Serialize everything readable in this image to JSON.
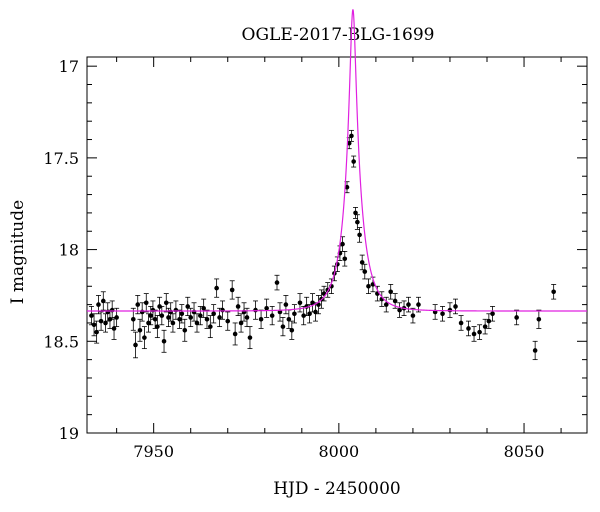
{
  "chart_data": {
    "type": "scatter",
    "title": "OGLE-2017-BLG-1699",
    "xlabel": "HJD - 2450000",
    "ylabel": "I magnitude",
    "xlim": [
      7932,
      8067
    ],
    "ylim": [
      19,
      16.95
    ],
    "y_inverted": true,
    "x_ticks": [
      7950,
      8000,
      8050
    ],
    "y_ticks": [
      17,
      17.5,
      18,
      18.5,
      19
    ],
    "x_tick_labels": [
      "7950",
      "8000",
      "8050"
    ],
    "y_tick_labels": [
      "17",
      "17.5",
      "18",
      "18.5",
      "19"
    ],
    "grid": false,
    "legend": "none",
    "colors": {
      "data": "#000000",
      "model": "#e020e0"
    },
    "model": {
      "name": "",
      "t0": 8003.8,
      "tE": 5.0,
      "u0": 0.15,
      "baseline_mag": 18.335,
      "blend_fraction": 0.62
    },
    "series": [
      {
        "name": "",
        "x": [
          7933.2,
          7933.9,
          7934.6,
          7935.1,
          7935.8,
          7936.4,
          7937.0,
          7937.6,
          7938.2,
          7938.8,
          7939.3,
          7940.0,
          7944.5,
          7945.1,
          7945.7,
          7946.3,
          7946.9,
          7947.5,
          7948.0,
          7948.6,
          7949.2,
          7949.8,
          7950.4,
          7951.0,
          7951.6,
          7952.2,
          7952.8,
          7953.4,
          7954.0,
          7954.6,
          7955.2,
          7956.0,
          7957.0,
          7957.6,
          7958.4,
          7959.2,
          7960.0,
          7960.9,
          7961.7,
          7962.6,
          7963.5,
          7964.4,
          7965.3,
          7966.2,
          7967.0,
          7967.8,
          7968.6,
          7970.0,
          7971.2,
          7972.0,
          7972.8,
          7973.6,
          7974.4,
          7975.2,
          7976.0,
          7977.5,
          7979.0,
          7980.5,
          7982.0,
          7983.3,
          7984.1,
          7984.9,
          7985.7,
          7986.5,
          7987.3,
          7988.0,
          7989.5,
          7990.5,
          7991.3,
          7992.1,
          7992.9,
          7993.7,
          7994.5,
          7995.3,
          7996.0,
          7997.0,
          7998.0,
          7998.8,
          7999.6,
          8000.3,
          8001.0,
          8001.6,
          8002.2,
          8002.8,
          8003.4,
          8004.0,
          8004.5,
          8005.0,
          8005.6,
          8006.3,
          8007.0,
          8008.0,
          8009.2,
          8010.4,
          8011.6,
          8012.8,
          8014.0,
          8015.2,
          8016.4,
          8017.6,
          8018.8,
          8020.0,
          8021.5,
          8026.0,
          8028.0,
          8030.0,
          8031.5,
          8033.0,
          8035.0,
          8036.5,
          8038.0,
          8039.5,
          8040.5,
          8041.5,
          8048.0,
          8053.0,
          8054.0,
          8058.0
        ],
        "y": [
          18.36,
          18.41,
          18.45,
          18.3,
          18.39,
          18.28,
          18.4,
          18.34,
          18.38,
          18.33,
          18.43,
          18.37,
          18.38,
          18.52,
          18.3,
          18.44,
          18.34,
          18.48,
          18.29,
          18.4,
          18.36,
          18.33,
          18.38,
          18.42,
          18.31,
          18.36,
          18.5,
          18.29,
          18.37,
          18.34,
          18.4,
          18.33,
          18.38,
          18.35,
          18.44,
          18.31,
          18.37,
          18.34,
          18.4,
          18.36,
          18.32,
          18.38,
          18.42,
          18.35,
          18.21,
          18.37,
          18.33,
          18.39,
          18.22,
          18.46,
          18.31,
          18.4,
          18.34,
          18.37,
          18.48,
          18.33,
          18.38,
          18.32,
          18.36,
          18.18,
          18.34,
          18.42,
          18.3,
          18.38,
          18.44,
          18.35,
          18.29,
          18.36,
          18.31,
          18.35,
          18.29,
          18.34,
          18.3,
          18.27,
          18.24,
          18.22,
          18.2,
          18.13,
          18.08,
          18.02,
          17.97,
          18.05,
          17.66,
          17.42,
          17.38,
          17.52,
          17.8,
          17.85,
          17.92,
          18.07,
          18.12,
          18.2,
          18.19,
          18.24,
          18.27,
          18.3,
          18.23,
          18.28,
          18.33,
          18.32,
          18.3,
          18.36,
          18.3,
          18.34,
          18.35,
          18.33,
          18.31,
          18.4,
          18.43,
          18.46,
          18.45,
          18.42,
          18.39,
          18.35,
          18.37,
          18.55,
          18.38,
          18.23
        ],
        "err": [
          0.05,
          0.06,
          0.06,
          0.05,
          0.05,
          0.05,
          0.05,
          0.05,
          0.05,
          0.05,
          0.06,
          0.05,
          0.06,
          0.07,
          0.05,
          0.06,
          0.05,
          0.06,
          0.05,
          0.05,
          0.05,
          0.05,
          0.05,
          0.06,
          0.05,
          0.05,
          0.06,
          0.05,
          0.05,
          0.05,
          0.05,
          0.05,
          0.05,
          0.05,
          0.06,
          0.05,
          0.05,
          0.05,
          0.05,
          0.05,
          0.05,
          0.05,
          0.06,
          0.05,
          0.05,
          0.05,
          0.05,
          0.05,
          0.05,
          0.06,
          0.05,
          0.05,
          0.05,
          0.05,
          0.06,
          0.05,
          0.05,
          0.05,
          0.05,
          0.04,
          0.05,
          0.05,
          0.05,
          0.05,
          0.05,
          0.05,
          0.05,
          0.05,
          0.05,
          0.05,
          0.05,
          0.05,
          0.05,
          0.05,
          0.04,
          0.04,
          0.04,
          0.04,
          0.04,
          0.04,
          0.04,
          0.04,
          0.03,
          0.03,
          0.03,
          0.03,
          0.03,
          0.04,
          0.04,
          0.04,
          0.04,
          0.04,
          0.04,
          0.04,
          0.04,
          0.04,
          0.04,
          0.04,
          0.04,
          0.04,
          0.04,
          0.04,
          0.04,
          0.04,
          0.04,
          0.04,
          0.04,
          0.04,
          0.04,
          0.04,
          0.04,
          0.04,
          0.04,
          0.04,
          0.04,
          0.05,
          0.05,
          0.04
        ]
      }
    ]
  }
}
